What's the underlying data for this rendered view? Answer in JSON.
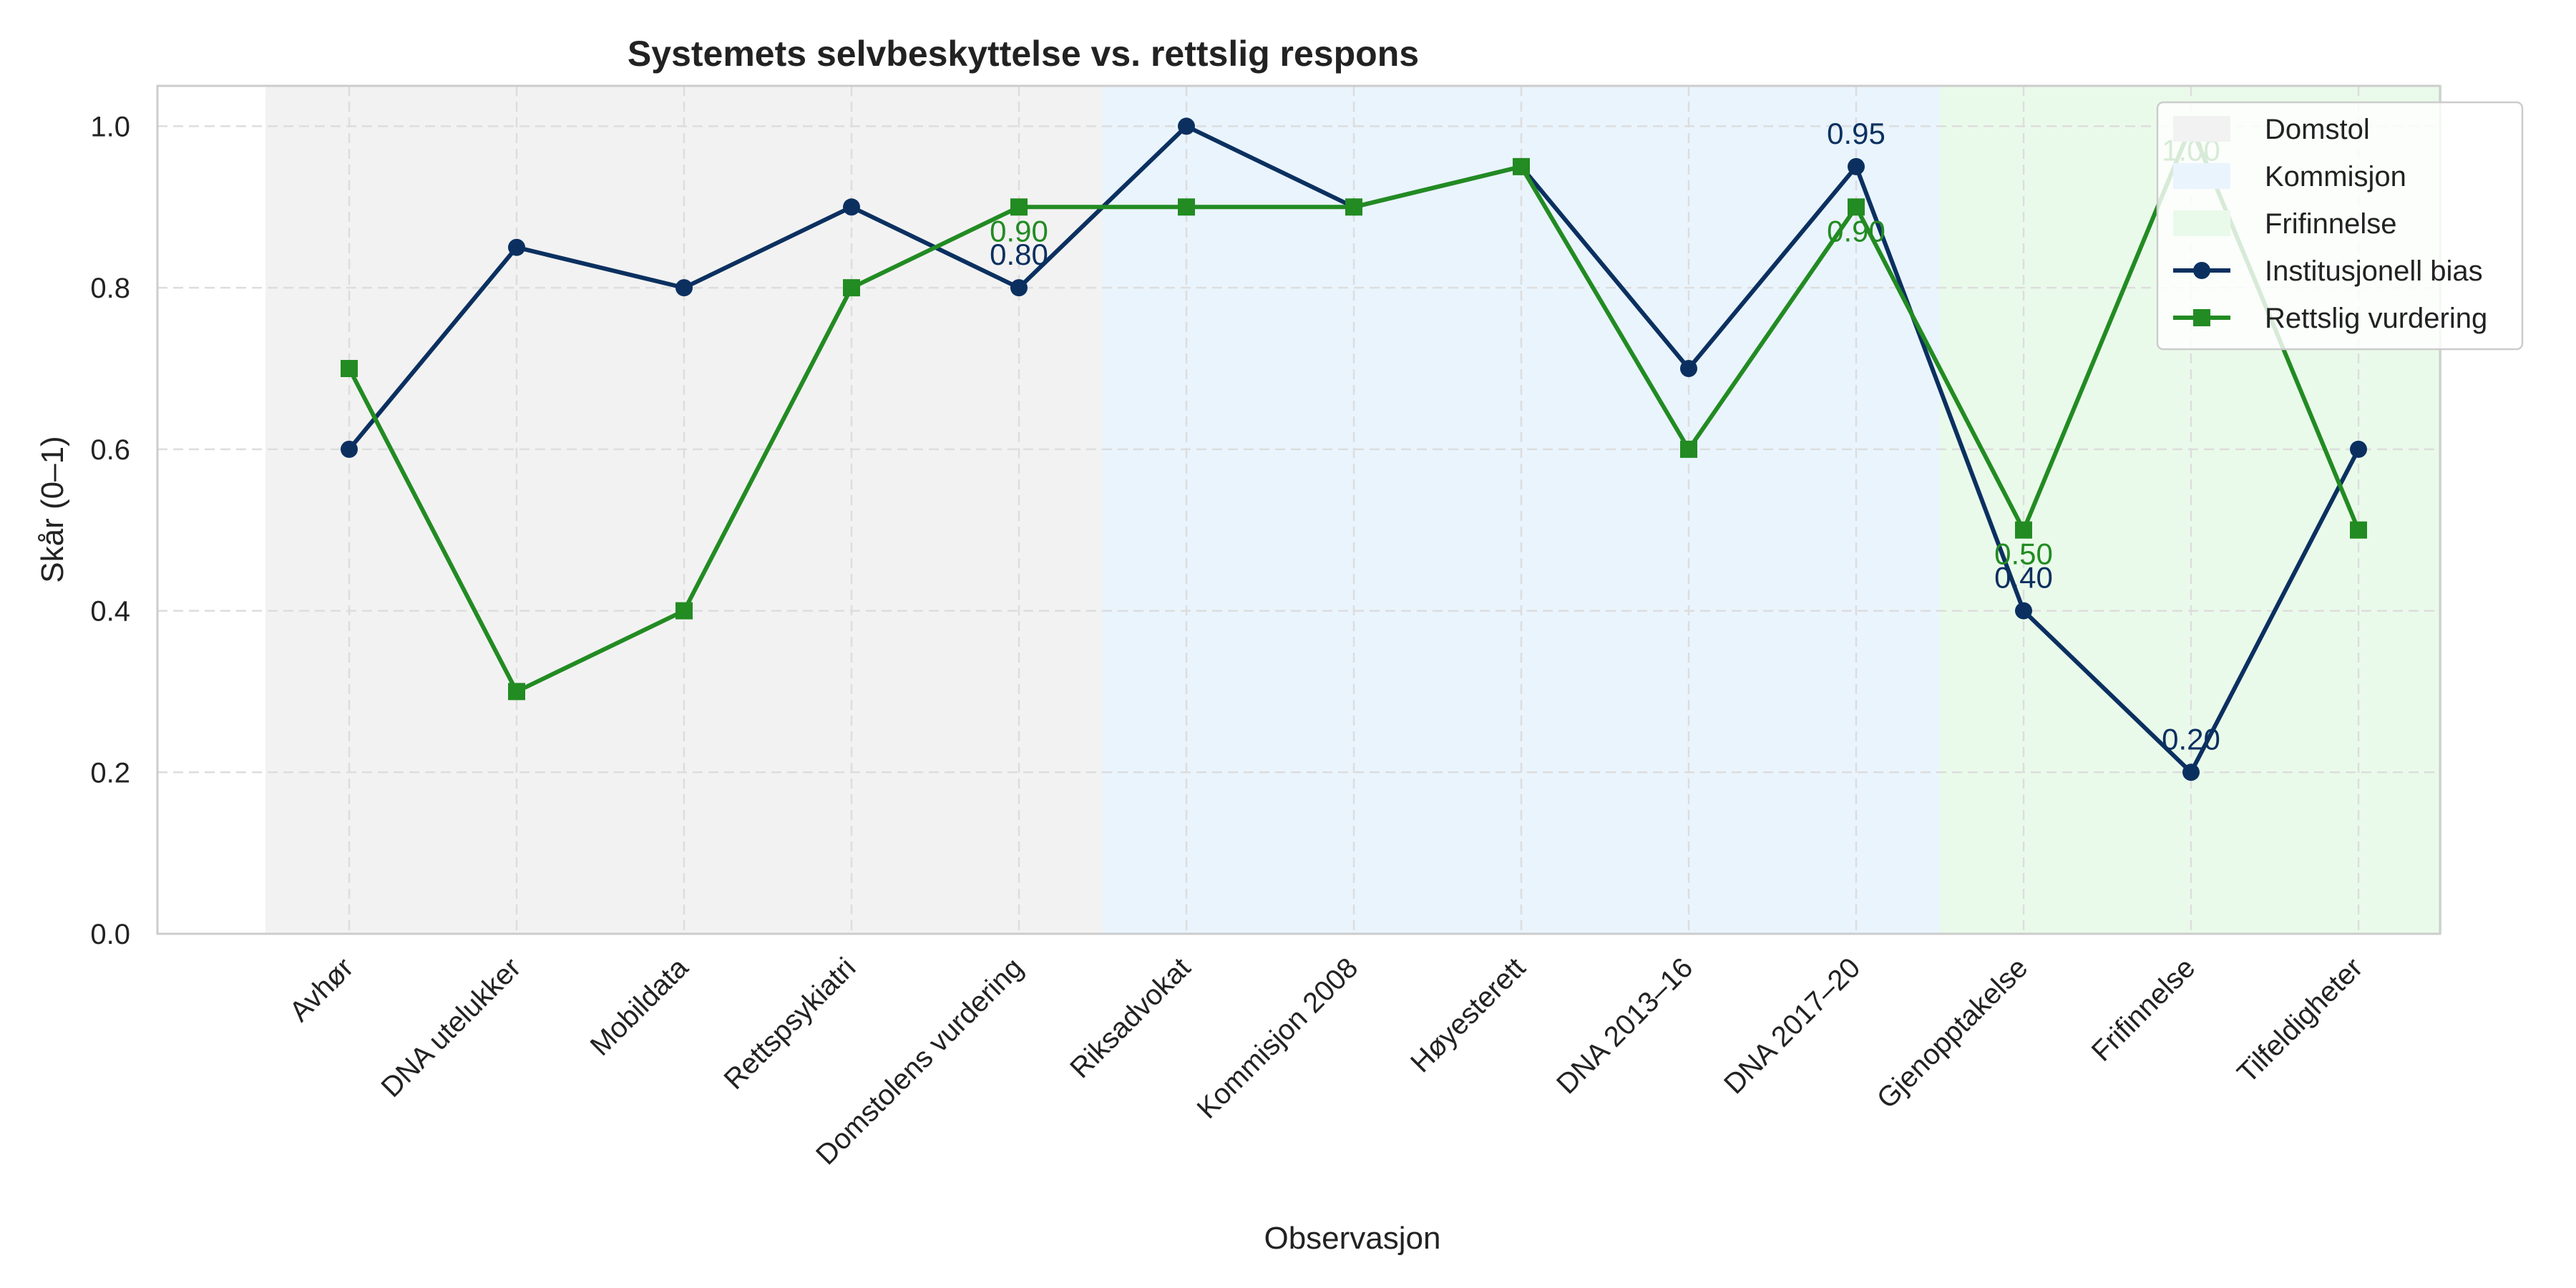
{
  "chart_data": {
    "type": "line",
    "title": "Systemets selvbeskyttelse vs. rettslig respons",
    "xlabel": "Observasjon",
    "ylabel": "Skår (0–1)",
    "ylim": [
      0,
      1.05
    ],
    "yticks": [
      "0.0",
      "0.2",
      "0.4",
      "0.6",
      "0.8",
      "1.0"
    ],
    "grid": true,
    "legend_position": "top-right",
    "categories": [
      "Avhør",
      "DNA utelukker",
      "Mobildata",
      "Rettspsykiatri",
      "Domstolens vurdering",
      "Riksadvokat",
      "Kommisjon 2008",
      "Høyesterett",
      "DNA 2013–16",
      "DNA 2017–20",
      "Gjenopptakelse",
      "Frifinnelse",
      "Tilfeldigheter"
    ],
    "regions": [
      {
        "name": "Domstol",
        "start": 0,
        "end": 4,
        "color": "#f2f2f2"
      },
      {
        "name": "Kommisjon",
        "start": 5,
        "end": 9,
        "color": "#eaf4fd"
      },
      {
        "name": "Frifinnelse",
        "start": 10,
        "end": 12,
        "color": "#eafaea"
      }
    ],
    "series": [
      {
        "name": "Institusjonell bias",
        "color": "#0b3060",
        "marker": "circle",
        "values": [
          0.6,
          0.85,
          0.8,
          0.9,
          0.8,
          1.0,
          0.9,
          0.95,
          0.7,
          0.95,
          0.4,
          0.2,
          0.6
        ]
      },
      {
        "name": "Rettslig vurdering",
        "color": "#228b22",
        "marker": "square",
        "values": [
          0.7,
          0.3,
          0.4,
          0.8,
          0.9,
          0.9,
          0.9,
          0.95,
          0.6,
          0.9,
          0.5,
          1.0,
          0.5
        ]
      }
    ],
    "annotations": [
      {
        "series": 0,
        "index": 4,
        "text": "0.80"
      },
      {
        "series": 0,
        "index": 9,
        "text": "0.95"
      },
      {
        "series": 0,
        "index": 10,
        "text": "0.40"
      },
      {
        "series": 0,
        "index": 11,
        "text": "0.20"
      },
      {
        "series": 1,
        "index": 4,
        "text": "0.90"
      },
      {
        "series": 1,
        "index": 9,
        "text": "0.90"
      },
      {
        "series": 1,
        "index": 10,
        "text": "0.50"
      },
      {
        "series": 1,
        "index": 11,
        "text": "1.00"
      }
    ]
  }
}
